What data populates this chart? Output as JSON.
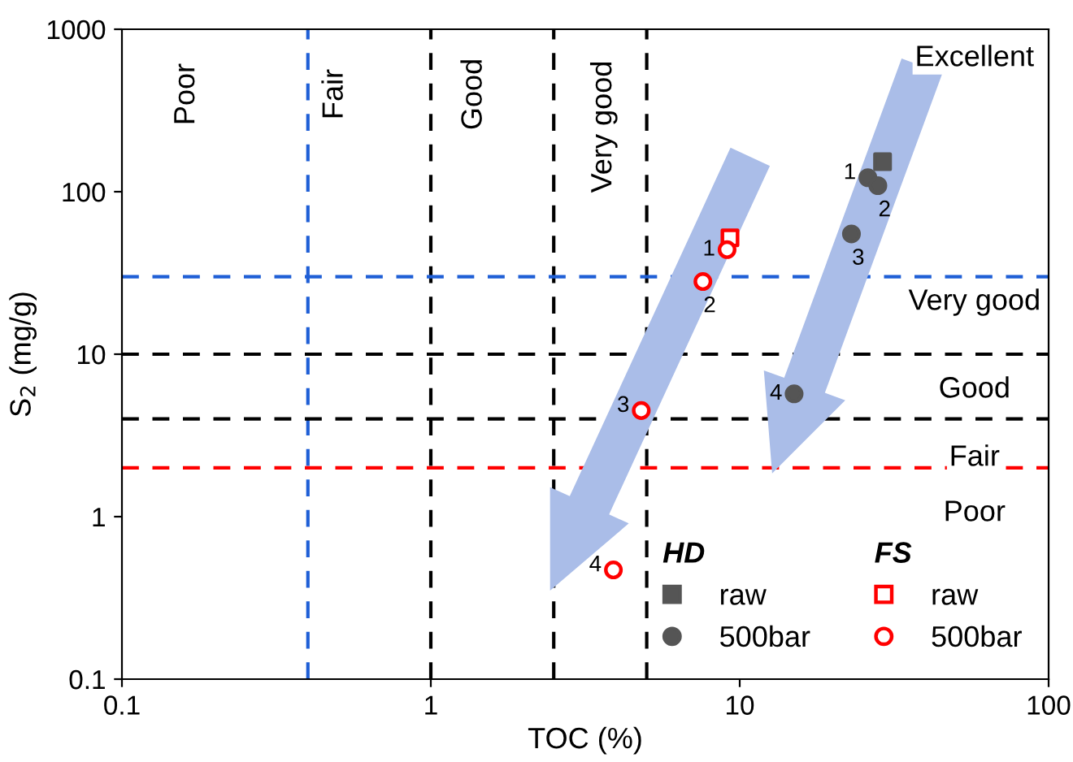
{
  "chart_data": {
    "type": "scatter",
    "xlabel": "TOC (%)",
    "ylabel": "S$_{2}$ (mg/g)",
    "log": "xy",
    "xlim": [
      0.1,
      100
    ],
    "xticks": [
      0.1,
      1,
      10,
      100
    ],
    "ylim": [
      0.1,
      1000
    ],
    "yticks": [
      0.1,
      1,
      10,
      100,
      1000
    ],
    "grid": false,
    "legend": "bottom right",
    "series": [
      {
        "name": "raw",
        "color": "#555555",
        "marker": "square",
        "x": [
          29
        ],
        "values": [
          153
        ]
      },
      {
        "name": "500bar",
        "color": "#555555",
        "marker": "circle",
        "x": [
          26,
          28,
          23,
          15
        ],
        "values": [
          122,
          109,
          55,
          5.7
        ]
      },
      {
        "name": "raw",
        "color": "#ff0000",
        "marker": "square",
        "x": [
          9.3
        ],
        "values": [
          52
        ]
      },
      {
        "name": "500bar",
        "color": "#ff0000",
        "marker": "circle",
        "x": [
          9.1,
          7.6,
          4.8,
          3.9
        ],
        "values": [
          44,
          28,
          4.5,
          0.47
        ]
      }
    ],
    "ref_lines": [
      {
        "axis": "x",
        "value": 0.4,
        "color": "#1f5fd6",
        "line_style": "dashed"
      },
      {
        "axis": "x",
        "value": 1,
        "color": "#000000",
        "line_style": "dashed"
      },
      {
        "axis": "x",
        "value": 2.5,
        "color": "#000000",
        "line_style": "dashed"
      },
      {
        "axis": "x",
        "value": 5,
        "color": "#000000",
        "line_style": "dashed"
      },
      {
        "axis": "y",
        "value": 30,
        "color": "#1f5fd6",
        "line_style": "dashed"
      },
      {
        "axis": "y",
        "value": 10,
        "color": "#000000",
        "line_style": "dashed"
      },
      {
        "axis": "y",
        "value": 4,
        "color": "#000000",
        "line_style": "dashed"
      },
      {
        "axis": "y",
        "value": 2,
        "color": "#ff0000",
        "line_style": "dashed"
      }
    ],
    "annotations": [
      "Poor",
      "Fair",
      "Good",
      "Very good",
      "Excellent",
      "Very good",
      "Good",
      "Fair",
      "Poor",
      "HD",
      "FS",
      {
        "text": "1",
        "x": 26,
        "y": 122
      },
      {
        "text": "2",
        "x": 28,
        "y": 109
      },
      {
        "text": "3",
        "x": 23,
        "y": 55
      },
      {
        "text": "4",
        "x": 15,
        "y": 5.7
      },
      {
        "text": "1",
        "x": 9.1,
        "y": 44
      },
      {
        "text": "2",
        "x": 7.6,
        "y": 28
      },
      {
        "text": "3",
        "x": 4.8,
        "y": 4.5
      },
      {
        "text": "4",
        "x": 3.9,
        "y": 0.47
      }
    ]
  }
}
